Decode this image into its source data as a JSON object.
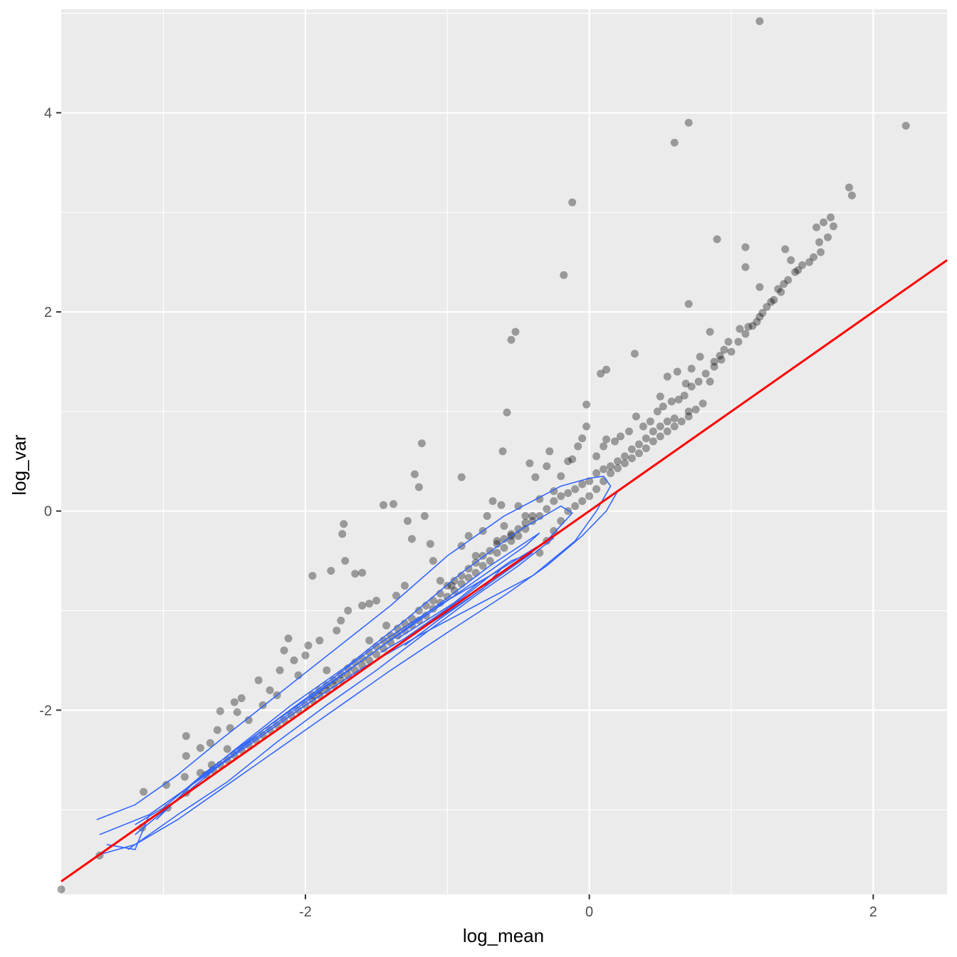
{
  "chart_data": {
    "type": "scatter",
    "xlabel": "log_mean",
    "ylabel": "log_var",
    "xlim": [
      -3.72,
      2.52
    ],
    "ylim": [
      -3.85,
      5.04
    ],
    "x_ticks": [
      -2,
      0,
      2
    ],
    "x_tick_labels": [
      "-2",
      "0",
      "2"
    ],
    "y_ticks": [
      -2,
      0,
      2,
      4
    ],
    "y_tick_labels": [
      "-2",
      "0",
      "2",
      "4"
    ],
    "grid": true,
    "legend": "none",
    "panel_background": "#ebebeb",
    "grid_color": "#ffffff",
    "point_color": "#000000",
    "point_alpha": 0.35,
    "density_contour_color": "#3366ff",
    "reference_line": {
      "color": "#ff0000",
      "slope": 1,
      "intercept": 0
    },
    "points": [
      [
        1.2,
        4.92
      ],
      [
        0.7,
        3.9
      ],
      [
        0.6,
        3.7
      ],
      [
        2.23,
        3.87
      ],
      [
        -0.12,
        3.1
      ],
      [
        1.83,
        3.25
      ],
      [
        1.85,
        3.17
      ],
      [
        -0.18,
        2.37
      ],
      [
        0.9,
        2.73
      ],
      [
        1.1,
        2.65
      ],
      [
        0.7,
        2.08
      ],
      [
        1.2,
        2.25
      ],
      [
        1.1,
        2.45
      ],
      [
        1.38,
        2.63
      ],
      [
        1.42,
        2.52
      ],
      [
        1.6,
        2.85
      ],
      [
        1.65,
        2.9
      ],
      [
        1.7,
        2.95
      ],
      [
        1.72,
        2.86
      ],
      [
        1.68,
        2.75
      ],
      [
        1.63,
        2.6
      ],
      [
        1.58,
        2.55
      ],
      [
        1.5,
        2.47
      ],
      [
        1.47,
        2.42
      ],
      [
        1.4,
        2.32
      ],
      [
        1.37,
        2.28
      ],
      [
        1.33,
        2.23
      ],
      [
        1.3,
        2.12
      ],
      [
        1.25,
        2.05
      ],
      [
        1.22,
        1.99
      ],
      [
        1.18,
        1.9
      ],
      [
        1.12,
        1.85
      ],
      [
        1.06,
        1.83
      ],
      [
        0.98,
        1.7
      ],
      [
        0.95,
        1.62
      ],
      [
        0.92,
        1.56
      ],
      [
        0.88,
        1.5
      ],
      [
        0.85,
        1.8
      ],
      [
        0.78,
        1.55
      ],
      [
        0.72,
        1.43
      ],
      [
        0.68,
        1.28
      ],
      [
        0.62,
        1.4
      ],
      [
        0.55,
        1.35
      ],
      [
        0.5,
        1.15
      ],
      [
        0.32,
        1.58
      ],
      [
        0.12,
        1.42
      ],
      [
        0.08,
        1.38
      ],
      [
        -0.52,
        1.8
      ],
      [
        -0.55,
        1.72
      ],
      [
        -0.58,
        0.99
      ],
      [
        -0.61,
        0.6
      ],
      [
        -0.02,
        1.07
      ],
      [
        0.85,
        1.3
      ],
      [
        0.7,
        1.0
      ],
      [
        0.6,
        0.93
      ],
      [
        0.55,
        0.9
      ],
      [
        0.5,
        0.85
      ],
      [
        0.45,
        0.8
      ],
      [
        0.4,
        0.73
      ],
      [
        0.35,
        0.67
      ],
      [
        0.3,
        0.62
      ],
      [
        0.25,
        0.55
      ],
      [
        0.2,
        0.5
      ],
      [
        0.15,
        0.45
      ],
      [
        0.1,
        0.42
      ],
      [
        0.05,
        0.38
      ],
      [
        0.0,
        0.3
      ],
      [
        -0.05,
        0.27
      ],
      [
        -0.1,
        0.22
      ],
      [
        -0.15,
        0.18
      ],
      [
        -0.2,
        0.15
      ],
      [
        -0.25,
        0.1
      ],
      [
        -0.3,
        0.02
      ],
      [
        -0.35,
        -0.05
      ],
      [
        -0.4,
        -0.1
      ],
      [
        -0.45,
        -0.18
      ],
      [
        -0.5,
        -0.25
      ],
      [
        -0.55,
        -0.3
      ],
      [
        -0.6,
        -0.37
      ],
      [
        -0.65,
        -0.42
      ],
      [
        -0.7,
        -0.5
      ],
      [
        -0.75,
        -0.55
      ],
      [
        -0.8,
        -0.62
      ],
      [
        -0.85,
        -0.67
      ],
      [
        -0.9,
        -0.73
      ],
      [
        -0.95,
        -0.8
      ],
      [
        -1.0,
        -0.86
      ],
      [
        -1.05,
        -0.92
      ],
      [
        -1.1,
        -0.98
      ],
      [
        -1.15,
        -1.05
      ],
      [
        -1.2,
        -1.1
      ],
      [
        -1.25,
        -1.15
      ],
      [
        -1.3,
        -1.2
      ],
      [
        -1.35,
        -1.25
      ],
      [
        -1.4,
        -1.32
      ],
      [
        -1.45,
        -1.38
      ],
      [
        -1.5,
        -1.44
      ],
      [
        -1.55,
        -1.5
      ],
      [
        -1.6,
        -1.55
      ],
      [
        -1.65,
        -1.6
      ],
      [
        -1.7,
        -1.65
      ],
      [
        -1.75,
        -1.7
      ],
      [
        -1.8,
        -1.75
      ],
      [
        -1.85,
        -1.8
      ],
      [
        -1.9,
        -1.85
      ],
      [
        -1.95,
        -1.9
      ],
      [
        -2.0,
        -1.95
      ],
      [
        -2.05,
        -2.0
      ],
      [
        -2.1,
        -2.05
      ],
      [
        -2.15,
        -2.1
      ],
      [
        -2.2,
        -2.15
      ],
      [
        -2.25,
        -2.2
      ],
      [
        -2.3,
        -2.25
      ],
      [
        -2.35,
        -2.3
      ],
      [
        -2.4,
        -2.35
      ],
      [
        -2.45,
        -2.4
      ],
      [
        -2.5,
        -2.45
      ],
      [
        -2.55,
        -2.5
      ],
      [
        -2.6,
        -2.55
      ],
      [
        -2.65,
        -2.6
      ],
      [
        -2.7,
        -2.65
      ],
      [
        -3.72,
        -3.8
      ],
      [
        -3.45,
        -3.46
      ],
      [
        -3.15,
        -3.18
      ],
      [
        -3.14,
        -2.82
      ],
      [
        -2.98,
        -2.75
      ],
      [
        -2.97,
        -2.98
      ],
      [
        -2.84,
        -2.83
      ],
      [
        -2.85,
        -2.67
      ],
      [
        -2.84,
        -2.46
      ],
      [
        -2.84,
        -2.26
      ],
      [
        -2.74,
        -2.63
      ],
      [
        -2.74,
        -2.38
      ],
      [
        -2.66,
        -2.55
      ],
      [
        -2.67,
        -2.33
      ],
      [
        -2.62,
        -2.2
      ],
      [
        -2.6,
        -2.01
      ],
      [
        -2.55,
        -2.39
      ],
      [
        -2.53,
        -2.18
      ],
      [
        -2.5,
        -1.92
      ],
      [
        -2.48,
        -2.02
      ],
      [
        -2.45,
        -1.88
      ],
      [
        -2.4,
        -2.1
      ],
      [
        -2.33,
        -1.7
      ],
      [
        -2.3,
        -1.95
      ],
      [
        -2.25,
        -1.8
      ],
      [
        -2.2,
        -1.85
      ],
      [
        -2.18,
        -1.6
      ],
      [
        -2.15,
        -1.4
      ],
      [
        -2.12,
        -1.28
      ],
      [
        -2.08,
        -1.5
      ],
      [
        -2.05,
        -1.65
      ],
      [
        -2.0,
        -1.45
      ],
      [
        -1.98,
        -1.35
      ],
      [
        -1.95,
        -0.65
      ],
      [
        -1.9,
        -1.3
      ],
      [
        -1.85,
        -1.6
      ],
      [
        -1.82,
        -0.6
      ],
      [
        -1.78,
        -1.2
      ],
      [
        -1.75,
        -1.1
      ],
      [
        -1.74,
        -0.23
      ],
      [
        -1.73,
        -0.13
      ],
      [
        -1.7,
        -1.0
      ],
      [
        -1.72,
        -0.5
      ],
      [
        -1.65,
        -0.63
      ],
      [
        -1.6,
        -0.95
      ],
      [
        -1.55,
        -0.93
      ],
      [
        -1.6,
        -0.62
      ],
      [
        -1.55,
        -1.3
      ],
      [
        -1.5,
        -0.9
      ],
      [
        -1.43,
        -1.15
      ],
      [
        -1.45,
        0.06
      ],
      [
        -1.38,
        0.07
      ],
      [
        -1.36,
        -0.85
      ],
      [
        -1.3,
        -0.75
      ],
      [
        -1.28,
        -0.1
      ],
      [
        -1.25,
        -0.28
      ],
      [
        -1.23,
        0.37
      ],
      [
        -1.2,
        0.24
      ],
      [
        -1.18,
        0.68
      ],
      [
        -1.16,
        -0.05
      ],
      [
        -1.12,
        -0.33
      ],
      [
        -1.1,
        -0.5
      ],
      [
        -1.05,
        -0.7
      ],
      [
        -0.97,
        -0.75
      ],
      [
        -0.9,
        -0.35
      ],
      [
        -0.9,
        0.34
      ],
      [
        -0.85,
        -0.25
      ],
      [
        -0.8,
        -0.45
      ],
      [
        -0.75,
        -0.2
      ],
      [
        -0.72,
        -0.05
      ],
      [
        -0.68,
        0.1
      ],
      [
        -0.65,
        -0.3
      ],
      [
        -0.62,
        0.06
      ],
      [
        -0.6,
        -0.15
      ],
      [
        -0.55,
        -0.25
      ],
      [
        -0.5,
        0.05
      ],
      [
        -0.45,
        -0.05
      ],
      [
        -0.42,
        0.48
      ],
      [
        -0.38,
        0.34
      ],
      [
        -0.35,
        0.12
      ],
      [
        -0.3,
        0.45
      ],
      [
        -0.28,
        0.6
      ],
      [
        -0.25,
        0.2
      ],
      [
        -0.2,
        0.35
      ],
      [
        -0.15,
        0.5
      ],
      [
        -0.12,
        0.52
      ],
      [
        -0.08,
        0.65
      ],
      [
        -0.05,
        0.73
      ],
      [
        -0.02,
        0.85
      ],
      [
        0.05,
        0.55
      ],
      [
        0.1,
        0.65
      ],
      [
        0.12,
        0.72
      ],
      [
        0.18,
        0.7
      ],
      [
        0.22,
        0.75
      ],
      [
        0.28,
        0.8
      ],
      [
        0.33,
        0.95
      ],
      [
        0.38,
        0.85
      ],
      [
        0.43,
        0.9
      ],
      [
        0.48,
        1.0
      ],
      [
        0.52,
        1.05
      ],
      [
        0.58,
        1.1
      ],
      [
        0.63,
        1.12
      ],
      [
        0.67,
        1.16
      ],
      [
        0.72,
        1.25
      ],
      [
        0.77,
        1.3
      ],
      [
        0.82,
        1.38
      ],
      [
        0.88,
        1.45
      ],
      [
        0.93,
        1.52
      ],
      [
        1.0,
        1.6
      ],
      [
        1.05,
        1.7
      ],
      [
        1.1,
        1.78
      ],
      [
        1.15,
        1.86
      ],
      [
        1.2,
        1.95
      ],
      [
        1.28,
        2.1
      ],
      [
        1.35,
        2.2
      ],
      [
        1.45,
        2.4
      ],
      [
        1.55,
        2.5
      ],
      [
        1.62,
        2.7
      ],
      [
        -0.35,
        -0.42
      ],
      [
        -0.3,
        -0.3
      ],
      [
        -0.25,
        -0.2
      ],
      [
        -0.2,
        -0.1
      ],
      [
        -0.15,
        0.0
      ],
      [
        -0.1,
        0.05
      ],
      [
        -0.05,
        0.1
      ],
      [
        0.0,
        0.15
      ],
      [
        0.05,
        0.22
      ],
      [
        0.1,
        0.3
      ],
      [
        0.15,
        0.38
      ],
      [
        -1.0,
        -0.75
      ],
      [
        -1.05,
        -0.83
      ],
      [
        -1.1,
        -0.9
      ],
      [
        -1.15,
        -0.95
      ],
      [
        -1.2,
        -1.0
      ],
      [
        -1.25,
        -1.08
      ],
      [
        -1.3,
        -1.13
      ],
      [
        -1.35,
        -1.18
      ],
      [
        -1.4,
        -1.25
      ],
      [
        -1.45,
        -1.3
      ],
      [
        -1.5,
        -1.36
      ],
      [
        -1.55,
        -1.42
      ],
      [
        -1.6,
        -1.48
      ],
      [
        -1.65,
        -1.52
      ],
      [
        -1.7,
        -1.58
      ],
      [
        -1.75,
        -1.64
      ],
      [
        -1.8,
        -1.7
      ],
      [
        -1.85,
        -1.75
      ],
      [
        -1.9,
        -1.8
      ],
      [
        -1.95,
        -1.85
      ],
      [
        -0.7,
        -0.4
      ],
      [
        -0.75,
        -0.45
      ],
      [
        -0.8,
        -0.52
      ],
      [
        -0.85,
        -0.58
      ],
      [
        -0.9,
        -0.65
      ],
      [
        -0.95,
        -0.7
      ],
      [
        -0.6,
        -0.28
      ],
      [
        -0.65,
        -0.33
      ],
      [
        -0.5,
        -0.18
      ],
      [
        -0.45,
        -0.12
      ],
      [
        -0.4,
        -0.05
      ],
      [
        -0.55,
        -0.23
      ],
      [
        0.2,
        0.43
      ],
      [
        0.25,
        0.48
      ],
      [
        0.3,
        0.53
      ],
      [
        0.35,
        0.58
      ],
      [
        0.4,
        0.63
      ],
      [
        0.45,
        0.7
      ],
      [
        0.5,
        0.75
      ],
      [
        0.55,
        0.8
      ],
      [
        0.6,
        0.85
      ],
      [
        0.65,
        0.9
      ],
      [
        0.7,
        0.95
      ],
      [
        0.75,
        1.02
      ],
      [
        0.8,
        1.08
      ]
    ],
    "contours": [
      [
        [
          -3.47,
          -3.1
        ],
        [
          -3.2,
          -2.95
        ],
        [
          -2.9,
          -2.65
        ],
        [
          -2.6,
          -2.3
        ],
        [
          -2.2,
          -1.85
        ],
        [
          -1.8,
          -1.4
        ],
        [
          -1.4,
          -0.95
        ],
        [
          -1.0,
          -0.45
        ],
        [
          -0.6,
          -0.05
        ],
        [
          -0.2,
          0.25
        ],
        [
          0.0,
          0.33
        ],
        [
          0.1,
          0.35
        ],
        [
          0.15,
          0.25
        ],
        [
          0.05,
          0.0
        ],
        [
          -0.1,
          -0.3
        ],
        [
          -0.4,
          -0.65
        ],
        [
          -0.8,
          -0.95
        ],
        [
          -1.2,
          -1.25
        ],
        [
          -1.6,
          -1.58
        ],
        [
          -2.0,
          -1.95
        ],
        [
          -2.4,
          -2.35
        ],
        [
          -2.8,
          -2.75
        ],
        [
          -3.1,
          -3.05
        ],
        [
          -3.2,
          -3.4
        ],
        [
          -3.4,
          -3.35
        ]
      ],
      [
        [
          -3.45,
          -3.25
        ],
        [
          -3.1,
          -3.05
        ],
        [
          -2.8,
          -2.75
        ],
        [
          -2.5,
          -2.4
        ],
        [
          -2.1,
          -1.95
        ],
        [
          -1.7,
          -1.55
        ],
        [
          -1.3,
          -1.1
        ],
        [
          -0.9,
          -0.62
        ],
        [
          -0.5,
          -0.2
        ],
        [
          -0.2,
          0.05
        ],
        [
          -0.12,
          -0.02
        ],
        [
          -0.3,
          -0.3
        ],
        [
          -0.7,
          -0.65
        ],
        [
          -1.1,
          -0.98
        ],
        [
          -1.5,
          -1.35
        ],
        [
          -1.9,
          -1.78
        ],
        [
          -2.3,
          -2.2
        ],
        [
          -2.7,
          -2.62
        ],
        [
          -3.0,
          -2.98
        ],
        [
          -3.2,
          -3.15
        ]
      ],
      [
        [
          -3.2,
          -3.25
        ],
        [
          -2.9,
          -2.9
        ],
        [
          -2.6,
          -2.55
        ],
        [
          -2.3,
          -2.2
        ],
        [
          -1.9,
          -1.8
        ],
        [
          -1.5,
          -1.4
        ],
        [
          -1.1,
          -0.98
        ],
        [
          -0.7,
          -0.55
        ],
        [
          -0.35,
          -0.22
        ],
        [
          -0.45,
          -0.35
        ],
        [
          -0.8,
          -0.7
        ],
        [
          -1.2,
          -1.1
        ],
        [
          -1.6,
          -1.5
        ],
        [
          -2.0,
          -1.92
        ],
        [
          -2.4,
          -2.33
        ],
        [
          -2.8,
          -2.75
        ],
        [
          -3.05,
          -3.1
        ]
      ],
      [
        [
          -3.45,
          -3.45
        ],
        [
          -3.2,
          -3.35
        ],
        [
          -2.9,
          -3.1
        ],
        [
          -2.6,
          -2.8
        ],
        [
          -2.2,
          -2.4
        ],
        [
          -1.8,
          -2.0
        ],
        [
          -1.4,
          -1.6
        ],
        [
          -1.0,
          -1.22
        ],
        [
          -0.6,
          -0.85
        ],
        [
          -0.3,
          -0.55
        ],
        [
          -0.05,
          -0.25
        ],
        [
          0.12,
          0.0
        ],
        [
          0.2,
          0.2
        ]
      ],
      [
        [
          -3.25,
          -3.4
        ],
        [
          -2.9,
          -3.05
        ],
        [
          -2.55,
          -2.72
        ],
        [
          -2.2,
          -2.32
        ],
        [
          -1.85,
          -1.95
        ],
        [
          -1.5,
          -1.6
        ],
        [
          -1.15,
          -1.22
        ],
        [
          -0.8,
          -0.85
        ],
        [
          -0.5,
          -0.55
        ],
        [
          -0.25,
          -0.27
        ]
      ],
      [
        [
          -1.47,
          -1.42
        ],
        [
          -1.3,
          -1.28
        ],
        [
          -1.1,
          -1.08
        ],
        [
          -0.9,
          -0.88
        ],
        [
          -0.7,
          -0.65
        ],
        [
          -0.55,
          -0.5
        ],
        [
          -0.4,
          -0.42
        ],
        [
          -0.6,
          -0.62
        ],
        [
          -0.85,
          -0.88
        ],
        [
          -1.05,
          -1.08
        ],
        [
          -1.3,
          -1.35
        ]
      ],
      [
        [
          -1.35,
          -1.28
        ],
        [
          -1.15,
          -1.1
        ],
        [
          -0.95,
          -0.92
        ],
        [
          -0.78,
          -0.72
        ],
        [
          -0.62,
          -0.58
        ],
        [
          -0.75,
          -0.78
        ],
        [
          -0.98,
          -1.0
        ],
        [
          -1.2,
          -1.2
        ]
      ]
    ]
  }
}
